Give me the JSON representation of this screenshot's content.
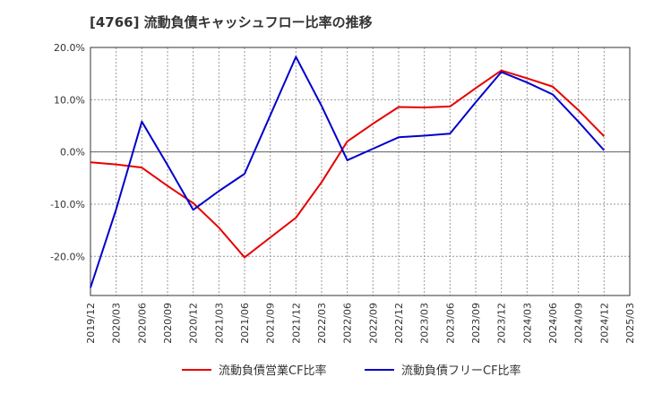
{
  "chart_data": {
    "type": "line",
    "title": "[4766]  流動負債キャッシュフロー比率の推移",
    "x": [
      "2019/12",
      "2020/03",
      "2020/06",
      "2020/09",
      "2020/12",
      "2021/03",
      "2021/06",
      "2021/09",
      "2021/12",
      "2022/03",
      "2022/06",
      "2022/09",
      "2022/12",
      "2023/03",
      "2023/06",
      "2023/09",
      "2023/12",
      "2024/03",
      "2024/06",
      "2024/09",
      "2024/12",
      "2025/03"
    ],
    "ylim": [
      -27.5,
      20
    ],
    "yticks": [
      20,
      10,
      0,
      -10,
      -20
    ],
    "ytick_labels": [
      "20.0%",
      "10.0%",
      "0.0%",
      "-10.0%",
      "-20.0%"
    ],
    "grid": true,
    "legend_position": "bottom",
    "series": [
      {
        "name": "流動負債営業CF比率",
        "color": "#e60000",
        "values": [
          -2.0,
          -2.4,
          -3.0,
          -6.5,
          -9.8,
          -14.5,
          -20.2,
          -16.4,
          -12.6,
          -5.8,
          2.0,
          5.4,
          8.6,
          8.5,
          8.7,
          12.2,
          15.6,
          14.1,
          12.5,
          8.0,
          3.0,
          null
        ]
      },
      {
        "name": "流動負債フリーCF比率",
        "color": "#0000cc",
        "values": [
          -26.0,
          -11.0,
          5.8,
          -2.5,
          -11.1,
          -7.5,
          -4.2,
          7.0,
          18.2,
          8.8,
          -1.6,
          0.6,
          2.8,
          3.1,
          3.5,
          9.5,
          15.3,
          13.3,
          11.0,
          5.8,
          0.3,
          null
        ]
      }
    ]
  }
}
